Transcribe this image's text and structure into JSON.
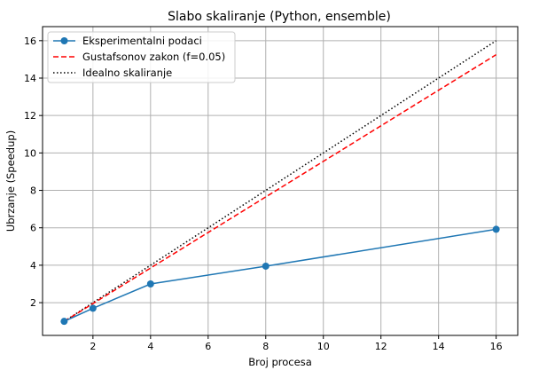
{
  "chart_data": {
    "type": "line",
    "title": "Slabo skaliranje (Python, ensemble)",
    "xlabel": "Broj procesa",
    "ylabel": "Ubrzanje (Speedup)",
    "xlim": [
      0.25,
      16.75
    ],
    "ylim": [
      0.25,
      16.75
    ],
    "xticks": [
      2,
      4,
      6,
      8,
      10,
      12,
      14,
      16
    ],
    "yticks": [
      2,
      4,
      6,
      8,
      10,
      12,
      14,
      16
    ],
    "grid": true,
    "legend_position": "top-left",
    "x": [
      1,
      2,
      4,
      8,
      16
    ],
    "series": [
      {
        "name": "Eksperimentalni podaci",
        "values": [
          1.0,
          1.7,
          3.0,
          3.95,
          5.92
        ],
        "color": "#1f77b4",
        "style": "solid",
        "marker": "circle"
      },
      {
        "name": "Gustafsonov zakon (f=0.05)",
        "values": [
          1.0,
          1.95,
          3.85,
          7.65,
          15.25
        ],
        "color": "#ff0000",
        "style": "dashed",
        "marker": "none"
      },
      {
        "name": "Idealno skaliranje",
        "values": [
          1,
          2,
          4,
          8,
          16
        ],
        "color": "#000000",
        "style": "dotted",
        "marker": "none"
      }
    ]
  }
}
